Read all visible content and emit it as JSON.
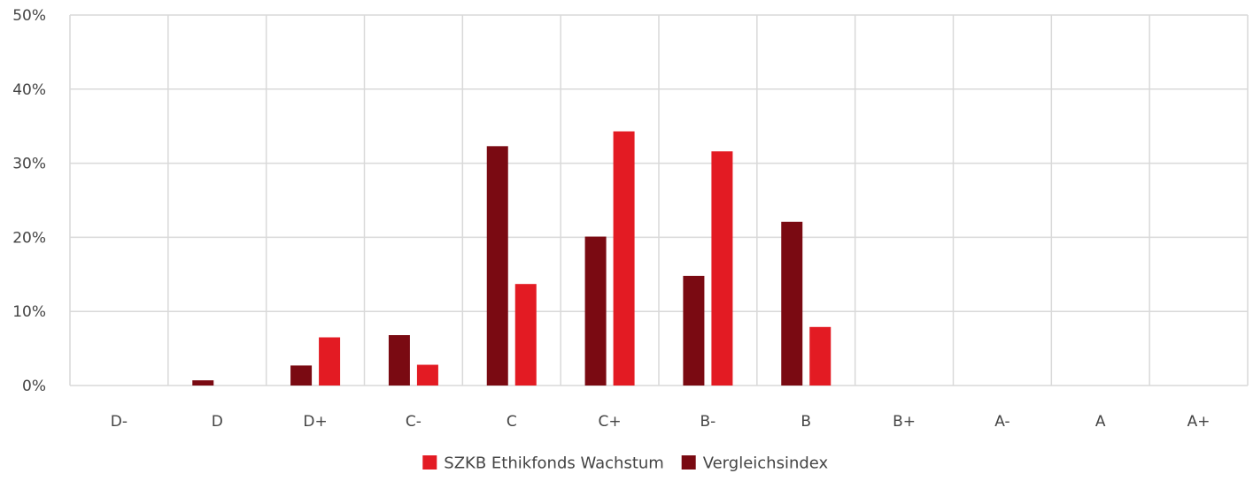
{
  "chart_data": {
    "type": "bar",
    "categories": [
      "D-",
      "D",
      "D+",
      "C-",
      "C",
      "C+",
      "B-",
      "B",
      "B+",
      "A-",
      "A",
      "A+"
    ],
    "series": [
      {
        "name": "Vergleichsindex",
        "color": "#7a0a12",
        "values": [
          0,
          0.7,
          2.7,
          6.8,
          32.3,
          20.1,
          14.8,
          22.1,
          0,
          0,
          0,
          0
        ]
      },
      {
        "name": "SZKB Ethikfonds Wachstum",
        "color": "#e31b23",
        "values": [
          0,
          0,
          6.5,
          2.8,
          13.7,
          34.3,
          31.6,
          7.9,
          0,
          0,
          0,
          0
        ]
      }
    ],
    "legend_order": [
      "SZKB Ethikfonds Wachstum",
      "Vergleichsindex"
    ],
    "ylim": [
      0,
      50
    ],
    "yticks": [
      0,
      10,
      20,
      30,
      40,
      50
    ],
    "ytick_labels": [
      "0%",
      "10%",
      "20%",
      "30%",
      "40%",
      "50%"
    ],
    "grid": true,
    "legend_position": "bottom-center",
    "title": "",
    "xlabel": "",
    "ylabel": ""
  }
}
